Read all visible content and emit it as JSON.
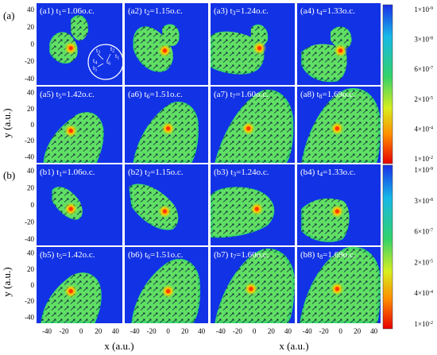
{
  "group_labels": [
    "(a)",
    "(b)"
  ],
  "axes": {
    "xlabel": "x (a.u.)",
    "ylabel": "y (a.u.)",
    "xticks": [
      "-40",
      "-20",
      "0",
      "20",
      "40"
    ],
    "yticks": [
      "40",
      "20",
      "0",
      "-20",
      "-40"
    ]
  },
  "rows": [
    [
      {
        "id": "a1",
        "label": "(a1) t",
        "sub": "1",
        "time": "=1.06o.c."
      },
      {
        "id": "a2",
        "label": "(a2) t",
        "sub": "2",
        "time": "=1.15o.c."
      },
      {
        "id": "a3",
        "label": "(a3) t",
        "sub": "3",
        "time": "=1.24o.c."
      },
      {
        "id": "a4",
        "label": "(a4) t",
        "sub": "4",
        "time": "=1.33o.c."
      }
    ],
    [
      {
        "id": "a5",
        "label": "(a5) t",
        "sub": "5",
        "time": "=1.42o.c."
      },
      {
        "id": "a6",
        "label": "(a6) t",
        "sub": "6",
        "time": "=1.51o.c."
      },
      {
        "id": "a7",
        "label": "(a7) t",
        "sub": "7",
        "time": "=1.60o.c."
      },
      {
        "id": "a8",
        "label": "(a8) t",
        "sub": "8",
        "time": "=1.69o.c."
      }
    ],
    [
      {
        "id": "b1",
        "label": "(b1) t",
        "sub": "1",
        "time": "=1.06o.c."
      },
      {
        "id": "b2",
        "label": "(b2) t",
        "sub": "2",
        "time": "=1.15o.c."
      },
      {
        "id": "b3",
        "label": "(b3) t",
        "sub": "3",
        "time": "=1.24o.c."
      },
      {
        "id": "b4",
        "label": "(b4) t",
        "sub": "4",
        "time": "=1.33o.c."
      }
    ],
    [
      {
        "id": "b5",
        "label": "(b5) t",
        "sub": "5",
        "time": "=1.42o.c."
      },
      {
        "id": "b6",
        "label": "(b6) t",
        "sub": "6",
        "time": "=1.51o.c."
      },
      {
        "id": "b7",
        "label": "(b7) t",
        "sub": "7",
        "time": "=1.60o.c."
      },
      {
        "id": "b8",
        "label": "(b8) t",
        "sub": "8",
        "time": "=1.69o.c."
      }
    ]
  ],
  "inset_clock": {
    "labels": [
      {
        "base": "t",
        "sub": "1"
      },
      {
        "base": "t",
        "sub": "2"
      },
      {
        "base": "t",
        "sub": "3"
      },
      {
        "base": "t",
        "sub": "4"
      },
      {
        "base": "t",
        "sub": "5"
      },
      {
        "base": "t",
        "sub": "6"
      }
    ]
  },
  "colorbars": [
    {
      "ticks": [
        {
          "base": "1×10",
          "exp": "-9"
        },
        {
          "base": "3×10",
          "exp": "-8"
        },
        {
          "base": "6×10",
          "exp": "-7"
        },
        {
          "base": "2×10",
          "exp": "-5"
        },
        {
          "base": "4×10",
          "exp": "-4"
        },
        {
          "base": "1×10",
          "exp": "-2"
        }
      ]
    },
    {
      "ticks": [
        {
          "base": "1×10",
          "exp": "-9"
        },
        {
          "base": "3×10",
          "exp": "-8"
        },
        {
          "base": "6×10",
          "exp": "-7"
        },
        {
          "base": "2×10",
          "exp": "-5"
        },
        {
          "base": "4×10",
          "exp": "-4"
        },
        {
          "base": "1×10",
          "exp": "-2"
        }
      ]
    }
  ],
  "colors": {
    "background": "#1232e6",
    "plume": "#3fd66a",
    "plume_light": "#9ef05a",
    "hot": "#ff3a00",
    "arrow": "#0a1b3a",
    "colorbar_stops": [
      "#1a2fe8",
      "#17b8e8",
      "#32d26b",
      "#d8ee1e",
      "#ff8c00",
      "#e60000"
    ]
  }
}
